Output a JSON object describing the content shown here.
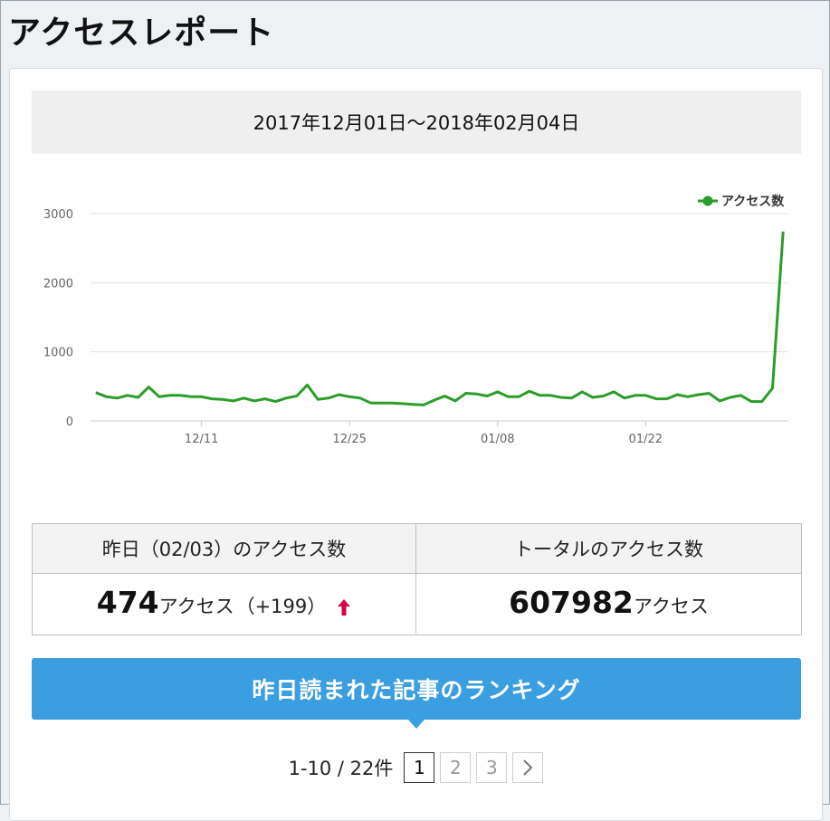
{
  "page": {
    "title": "アクセスレポート"
  },
  "report": {
    "date_range": "2017年12月01日～2018年02月04日"
  },
  "chart_data": {
    "type": "line",
    "legend": [
      "アクセス数"
    ],
    "legend_position": "top-right",
    "color": "#2a9d2a",
    "ylim": [
      0,
      3000
    ],
    "y_ticks": [
      "0",
      "1000",
      "2000",
      "3000"
    ],
    "x_tick_labels": [
      {
        "label": "12/11",
        "index": 10
      },
      {
        "label": "12/25",
        "index": 24
      },
      {
        "label": "01/08",
        "index": 38
      },
      {
        "label": "01/22",
        "index": 52
      }
    ],
    "x": [
      "12/01",
      "12/02",
      "12/03",
      "12/04",
      "12/05",
      "12/06",
      "12/07",
      "12/08",
      "12/09",
      "12/10",
      "12/11",
      "12/12",
      "12/13",
      "12/14",
      "12/15",
      "12/16",
      "12/17",
      "12/18",
      "12/19",
      "12/20",
      "12/21",
      "12/22",
      "12/23",
      "12/24",
      "12/25",
      "12/26",
      "12/27",
      "12/28",
      "12/29",
      "12/30",
      "12/31",
      "01/01",
      "01/02",
      "01/03",
      "01/04",
      "01/05",
      "01/06",
      "01/07",
      "01/08",
      "01/09",
      "01/10",
      "01/11",
      "01/12",
      "01/13",
      "01/14",
      "01/15",
      "01/16",
      "01/17",
      "01/18",
      "01/19",
      "01/20",
      "01/21",
      "01/22",
      "01/23",
      "01/24",
      "01/25",
      "01/26",
      "01/27",
      "01/28",
      "01/29",
      "01/30",
      "01/31",
      "02/01",
      "02/02",
      "02/03",
      "02/04"
    ],
    "series": [
      {
        "name": "アクセス数",
        "values": [
          410,
          350,
          330,
          370,
          340,
          490,
          350,
          370,
          370,
          350,
          350,
          320,
          310,
          290,
          330,
          290,
          320,
          280,
          330,
          360,
          520,
          310,
          330,
          380,
          350,
          330,
          260,
          260,
          260,
          250,
          240,
          230,
          300,
          360,
          290,
          400,
          390,
          360,
          420,
          350,
          350,
          430,
          370,
          370,
          340,
          330,
          420,
          340,
          360,
          420,
          330,
          370,
          370,
          320,
          320,
          380,
          350,
          380,
          400,
          290,
          340,
          370,
          280,
          280,
          474,
          2740
        ]
      }
    ]
  },
  "stats": {
    "yesterday_header": "昨日（02/03）のアクセス数",
    "yesterday_value": "474",
    "yesterday_unit": "アクセス",
    "yesterday_diff": "（+199）",
    "total_header": "トータルのアクセス数",
    "total_value": "607982",
    "total_unit": "アクセス"
  },
  "ranking": {
    "banner": "昨日読まれた記事のランキング"
  },
  "pager": {
    "count_text": "1-10 / 22件",
    "pages": [
      "1",
      "2",
      "3"
    ],
    "current": "1",
    "next_icon": "chevron-right-icon"
  }
}
